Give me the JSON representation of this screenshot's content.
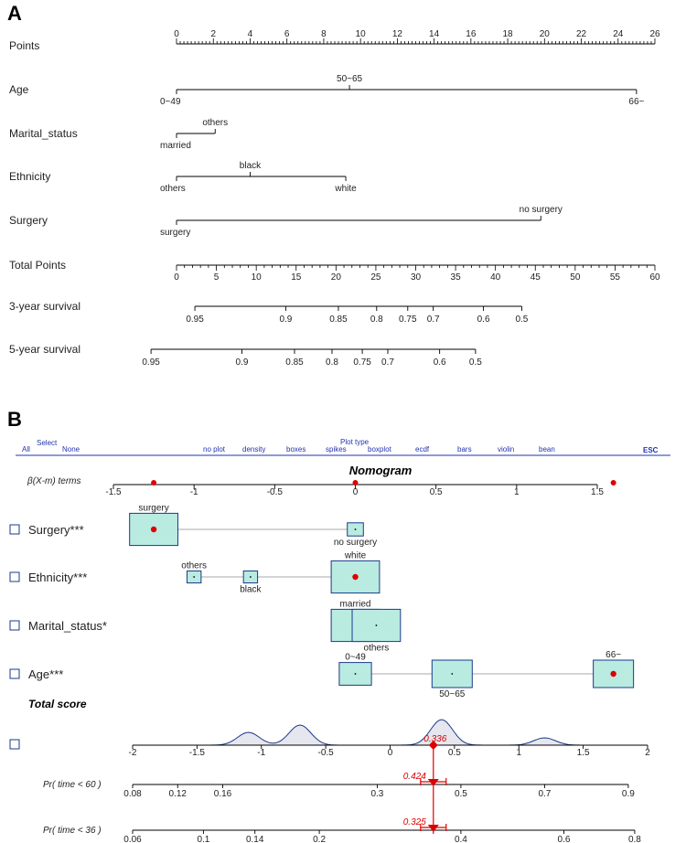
{
  "panel_labels": [
    "A",
    "B"
  ],
  "chart_data": [
    {
      "type": "nomogram",
      "panel": "A",
      "points_axis": {
        "label": "Points",
        "min": 0,
        "max": 26,
        "major": [
          0,
          2,
          4,
          6,
          8,
          10,
          12,
          14,
          16,
          18,
          20,
          22,
          24,
          26
        ]
      },
      "predictors": [
        {
          "name": "Age",
          "levels": [
            {
              "label": "0~49",
              "points": 0
            },
            {
              "label": "50~65",
              "points": 9.4
            },
            {
              "label": "66~",
              "points": 25
            }
          ]
        },
        {
          "name": "Marital_status",
          "levels": [
            {
              "label": "married",
              "points": 0
            },
            {
              "label": "others",
              "points": 2.1
            }
          ]
        },
        {
          "name": "Ethnicity",
          "levels": [
            {
              "label": "others",
              "points": 0
            },
            {
              "label": "black",
              "points": 4
            },
            {
              "label": "white",
              "points": 9.2
            }
          ]
        },
        {
          "name": "Surgery",
          "levels": [
            {
              "label": "surgery",
              "points": 0
            },
            {
              "label": "no surgery",
              "points": 19.8
            }
          ]
        }
      ],
      "total_points_axis": {
        "label": "Total Points",
        "min": 0,
        "max": 60,
        "major": [
          0,
          5,
          10,
          15,
          20,
          25,
          30,
          35,
          40,
          45,
          50,
          55,
          60
        ]
      },
      "survival_axes": [
        {
          "label": "3-year survival",
          "ticks": [
            {
              "label": "0.95",
              "total": 2.3
            },
            {
              "label": "0.9",
              "total": 13.7
            },
            {
              "label": "0.85",
              "total": 20.3
            },
            {
              "label": "0.8",
              "total": 25.1
            },
            {
              "label": "0.75",
              "total": 29
            },
            {
              "label": "0.7",
              "total": 32.2
            },
            {
              "label": "0.6",
              "total": 38.5
            },
            {
              "label": "0.5",
              "total": 43.3
            }
          ]
        },
        {
          "label": "5-year survival",
          "ticks": [
            {
              "label": "0.95",
              "total": -3.2
            },
            {
              "label": "0.9",
              "total": 8.2
            },
            {
              "label": "0.85",
              "total": 14.8
            },
            {
              "label": "0.8",
              "total": 19.5
            },
            {
              "label": "0.75",
              "total": 23.3
            },
            {
              "label": "0.7",
              "total": 26.5
            },
            {
              "label": "0.6",
              "total": 33
            },
            {
              "label": "0.5",
              "total": 37.5
            }
          ]
        }
      ]
    },
    {
      "type": "regplot",
      "panel": "B",
      "title": "Nomogram",
      "menu": {
        "all": "All",
        "select": "Select",
        "none": "None",
        "plot_type": "Plot type",
        "options": [
          "no plot",
          "density",
          "boxes",
          "spikes",
          "boxplot",
          "ecdf",
          "bars",
          "violin",
          "bean"
        ],
        "esc": "ESC"
      },
      "beta_axis": {
        "label": "β(X-m) terms",
        "min": -1.5,
        "max": 1.5,
        "ticks": [
          "-1.5",
          "-1",
          "-0.5",
          "0",
          "0.5",
          "1",
          "1.5"
        ],
        "markers": [
          -1.25,
          0,
          1.6
        ]
      },
      "rows": [
        {
          "name": "Surgery***",
          "categories": [
            {
              "label": "surgery",
              "beta": -1.25,
              "size": 2.4,
              "selected": true
            },
            {
              "label": "no surgery",
              "beta": 0,
              "size": 0.8,
              "selected": false
            }
          ]
        },
        {
          "name": "Ethnicity***",
          "categories": [
            {
              "label": "others",
              "beta": -1.0,
              "size": 0.7,
              "selected": false
            },
            {
              "label": "black",
              "beta": -0.65,
              "size": 0.7,
              "selected": false
            },
            {
              "label": "white",
              "beta": 0,
              "size": 2.4,
              "selected": true
            }
          ]
        },
        {
          "name": "Marital_status*",
          "categories": [
            {
              "label": "married",
              "beta": 0,
              "size": 2.4,
              "selected": true
            },
            {
              "label": "others",
              "beta": 0.13,
              "size": 2.4,
              "selected": false
            }
          ]
        },
        {
          "name": "Age***",
          "categories": [
            {
              "label": "0~49",
              "beta": 0,
              "size": 1.6,
              "selected": false
            },
            {
              "label": "50~65",
              "beta": 0.6,
              "size": 2.0,
              "selected": false
            },
            {
              "label": "66~",
              "beta": 1.6,
              "size": 2.0,
              "selected": true
            }
          ]
        }
      ],
      "total_score": {
        "label": "Total score",
        "min": -2,
        "max": 2,
        "ticks": [
          "-2",
          "-1.5",
          "-1",
          "-0.5",
          "0",
          "0.5",
          "1",
          "1.5",
          "2"
        ],
        "value": 0.336,
        "value_label": "0.336",
        "density_peaks": [
          {
            "x": -1.1,
            "h": 0.35
          },
          {
            "x": -0.7,
            "h": 0.55
          },
          {
            "x": 0.4,
            "h": 0.7
          },
          {
            "x": 1.2,
            "h": 0.2
          }
        ]
      },
      "probability_axes": [
        {
          "label": "Pr( time < 60 )",
          "value_label": "0.424",
          "ticks": [
            {
              "label": "0.08",
              "score": -2
            },
            {
              "label": "0.12",
              "score": -1.65
            },
            {
              "label": "0.16",
              "score": -1.3
            },
            {
              "label": "0.3",
              "score": -0.1
            },
            {
              "label": "0.5",
              "score": 0.55
            },
            {
              "label": "0.7",
              "score": 1.2
            },
            {
              "label": "0.9",
              "score": 1.85
            }
          ]
        },
        {
          "label": "Pr( time < 36 )",
          "value_label": "0.325",
          "ticks": [
            {
              "label": "0.06",
              "score": -2
            },
            {
              "label": "0.1",
              "score": -1.45
            },
            {
              "label": "0.14",
              "score": -1.05
            },
            {
              "label": "0.2",
              "score": -0.55
            },
            {
              "label": "0.4",
              "score": 0.55
            },
            {
              "label": "0.6",
              "score": 1.35
            },
            {
              "label": "0.8",
              "score": 1.9
            }
          ]
        }
      ]
    }
  ],
  "colors": {
    "box_fill": "#b9ebe1",
    "box_stroke": "#1a3a8a",
    "marker": "#dd0000",
    "menu": "#2233aa",
    "axis": "#000000",
    "density_fill": "#e6e6ee"
  }
}
